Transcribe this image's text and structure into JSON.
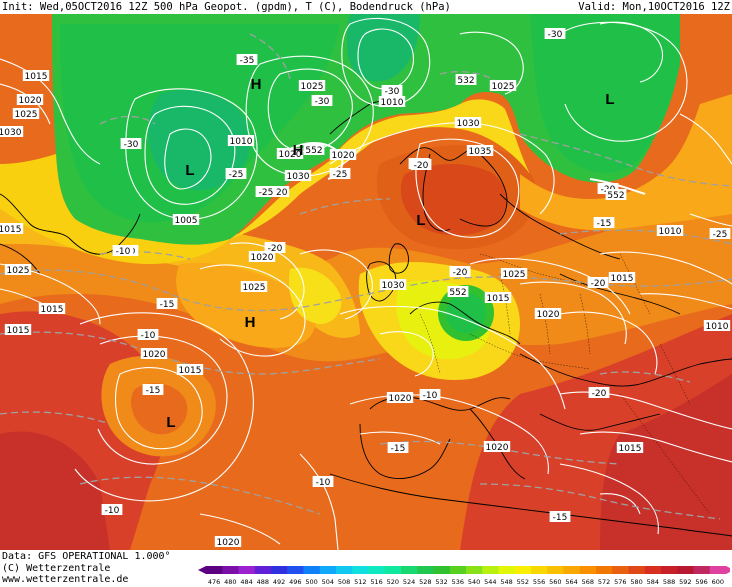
{
  "header": {
    "init": "Init: Wed,05OCT2016 12Z",
    "fields": "500 hPa Geopot. (gpdm), T (C), Bodendruck (hPa)",
    "valid": "Valid: Mon,10OCT2016 12Z"
  },
  "footer": {
    "data_source": "Data: GFS OPERATIONAL 1.000°",
    "copyright": "(C) Wetterzentrale",
    "website": "www.wetterzentrale.de"
  },
  "colorbar": {
    "ticks": [
      "476",
      "480",
      "484",
      "488",
      "492",
      "496",
      "500",
      "504",
      "508",
      "512",
      "516",
      "520",
      "524",
      "528",
      "532",
      "536",
      "540",
      "544",
      "548",
      "552",
      "556",
      "560",
      "564",
      "568",
      "572",
      "576",
      "580",
      "584",
      "588",
      "592",
      "596",
      "600"
    ],
    "colors": [
      "#5a0080",
      "#7a10a8",
      "#9a20d0",
      "#6020d8",
      "#3030e0",
      "#2050f0",
      "#1080f8",
      "#10a8f8",
      "#10c8f0",
      "#10e0e0",
      "#10e8c0",
      "#10e8a0",
      "#18d870",
      "#20c850",
      "#30c030",
      "#58d020",
      "#88e018",
      "#b8f010",
      "#e0f808",
      "#f8f000",
      "#f8d800",
      "#f8c000",
      "#f8a800",
      "#f89000",
      "#f07800",
      "#e86010",
      "#e04818",
      "#d83020",
      "#c82028",
      "#b81830",
      "#c02860",
      "#e040a0"
    ]
  },
  "map_labels": {
    "pressure": [
      "1015",
      "1020",
      "1025",
      "1010",
      "1005",
      "1025",
      "1010",
      "1030",
      "1020",
      "1030",
      "1035",
      "1025",
      "1020",
      "1025",
      "1030",
      "1015",
      "1020",
      "1015",
      "1020",
      "1015",
      "1020",
      "1025",
      "1015",
      "1020",
      "1015",
      "1010",
      "1020",
      "1015",
      "1010",
      "1025",
      "1030",
      "1020",
      "1015",
      "1020"
    ],
    "temperature": [
      "-35",
      "-30",
      "-30",
      "-30",
      "-25",
      "-25",
      "-20",
      "-30",
      "-25",
      "-20",
      "-25",
      "-20",
      "-20",
      "-15",
      "-10",
      "-15",
      "-10",
      "-20",
      "-15",
      "-10",
      "-15",
      "-10",
      "-10",
      "-15",
      "-20",
      "-20",
      "-20",
      "-25"
    ],
    "geopotential": [
      "532",
      "552",
      "552",
      "552"
    ],
    "systems": [
      "H",
      "H",
      "L",
      "L",
      "L",
      "H",
      "L"
    ]
  }
}
